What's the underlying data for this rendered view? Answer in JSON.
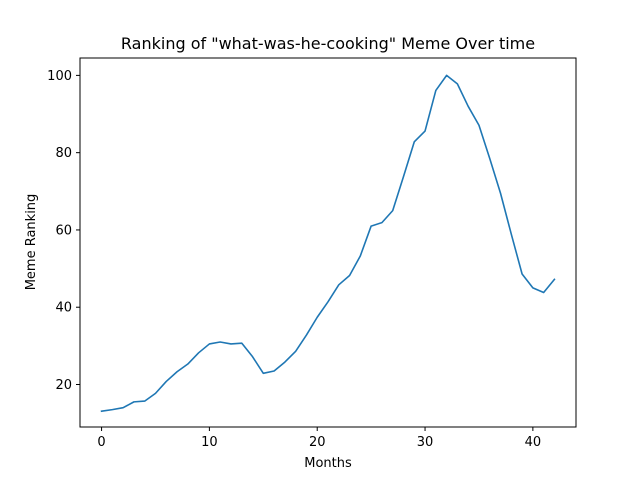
{
  "chart_data": {
    "type": "line",
    "title": "Ranking of \"what-was-he-cooking\" Meme Over time",
    "xlabel": "Months",
    "ylabel": "Meme Ranking",
    "xlim": [
      -2,
      44
    ],
    "ylim": [
      9,
      104.5
    ],
    "xticks": [
      0,
      10,
      20,
      30,
      40
    ],
    "yticks": [
      20,
      40,
      60,
      80,
      100
    ],
    "grid": false,
    "series": [
      {
        "color": "#1f77b4",
        "x": [
          0,
          1,
          2,
          3,
          4,
          5,
          6,
          7,
          8,
          9,
          10,
          11,
          12,
          13,
          14,
          15,
          16,
          17,
          18,
          19,
          20,
          21,
          22,
          23,
          24,
          25,
          26,
          27,
          28,
          29,
          30,
          31,
          32,
          33,
          34,
          35,
          36,
          37,
          38,
          39,
          40,
          41,
          42
        ],
        "values": [
          13.1,
          13.5,
          14.0,
          15.5,
          15.7,
          17.7,
          20.8,
          23.3,
          25.3,
          28.2,
          30.5,
          31.0,
          30.5,
          30.7,
          27.2,
          22.9,
          23.5,
          25.8,
          28.6,
          32.8,
          37.4,
          41.4,
          45.8,
          48.2,
          53.3,
          61.0,
          61.9,
          65.0,
          73.8,
          82.8,
          85.6,
          96.1,
          100.0,
          97.8,
          92.0,
          87.1,
          78.5,
          69.5,
          58.9,
          48.6,
          45.0,
          43.8,
          47.2
        ]
      }
    ]
  }
}
